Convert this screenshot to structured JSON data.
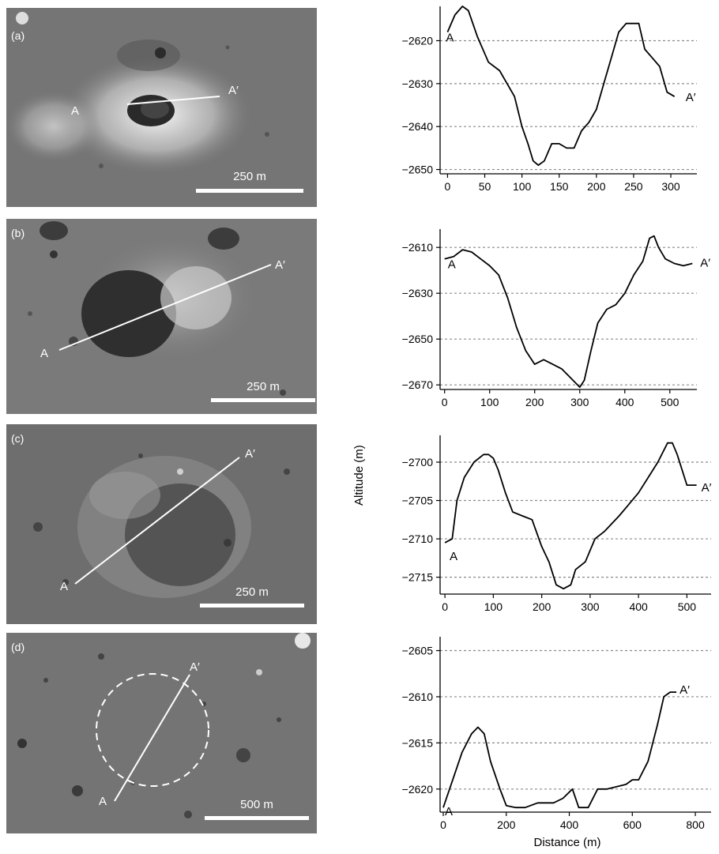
{
  "panels": [
    {
      "id": "a",
      "tag": "(a)",
      "scale_label": "250 m",
      "start_label": "A",
      "end_label": "A′"
    },
    {
      "id": "b",
      "tag": "(b)",
      "scale_label": "250 m",
      "start_label": "A",
      "end_label": "A′"
    },
    {
      "id": "c",
      "tag": "(c)",
      "scale_label": "250 m",
      "start_label": "A",
      "end_label": "A′"
    },
    {
      "id": "d",
      "tag": "(d)",
      "scale_label": "500 m",
      "start_label": "A",
      "end_label": "A′"
    }
  ],
  "ylabel": "Altitude (m)",
  "xlabel": "Distance (m)",
  "chart_data": [
    {
      "type": "line",
      "xlim": [
        -10,
        335
      ],
      "ylim": [
        -2651,
        -2612
      ],
      "xticks": [
        0,
        50,
        100,
        150,
        200,
        250,
        300
      ],
      "yticks": [
        -2620,
        -2630,
        -2640,
        -2650
      ],
      "gridlines": [
        -2620,
        -2630,
        -2640,
        -2650
      ],
      "grid": "horizontal dashed",
      "start_label": "A",
      "end_label": "A′",
      "x": [
        0,
        10,
        20,
        28,
        40,
        55,
        70,
        90,
        100,
        108,
        115,
        122,
        130,
        140,
        150,
        160,
        170,
        180,
        190,
        200,
        210,
        220,
        230,
        240,
        250,
        257,
        265,
        275,
        285,
        295,
        305
      ],
      "y": [
        -2618,
        -2614,
        -2612,
        -2613,
        -2619,
        -2625,
        -2627,
        -2633,
        -2640,
        -2644,
        -2648,
        -2649,
        -2648,
        -2644,
        -2644,
        -2645,
        -2645,
        -2641,
        -2639,
        -2636,
        -2630,
        -2624,
        -2618,
        -2616,
        -2616,
        -2616,
        -2622,
        -2624,
        -2626,
        -2632,
        -2633
      ]
    },
    {
      "type": "line",
      "xlim": [
        -10,
        560
      ],
      "ylim": [
        -2672,
        -2602
      ],
      "xticks": [
        0,
        100,
        200,
        300,
        400,
        500
      ],
      "yticks": [
        -2610,
        -2630,
        -2650,
        -2670
      ],
      "gridlines": [
        -2610,
        -2630,
        -2650,
        -2670
      ],
      "grid": "horizontal dashed",
      "start_label": "A",
      "end_label": "A′",
      "x": [
        0,
        20,
        40,
        60,
        80,
        100,
        120,
        140,
        160,
        180,
        200,
        220,
        240,
        260,
        280,
        300,
        310,
        325,
        340,
        360,
        380,
        400,
        420,
        440,
        455,
        465,
        475,
        490,
        510,
        530,
        550
      ],
      "y": [
        -2615,
        -2614,
        -2611,
        -2612,
        -2615,
        -2618,
        -2622,
        -2632,
        -2645,
        -2655,
        -2661,
        -2659,
        -2661,
        -2663,
        -2667,
        -2671,
        -2668,
        -2655,
        -2643,
        -2637,
        -2635,
        -2630,
        -2622,
        -2616,
        -2606,
        -2605,
        -2610,
        -2615,
        -2617,
        -2618,
        -2617
      ]
    },
    {
      "type": "line",
      "xlim": [
        -10,
        550
      ],
      "ylim": [
        -2717.2,
        -2696.5
      ],
      "xticks": [
        0,
        100,
        200,
        300,
        400,
        500
      ],
      "yticks": [
        -2700,
        -2705,
        -2710,
        -2715
      ],
      "gridlines": [
        -2700,
        -2705,
        -2710,
        -2715
      ],
      "grid": "horizontal dashed",
      "start_label": "A",
      "end_label": "A′",
      "x": [
        0,
        15,
        25,
        40,
        60,
        80,
        90,
        100,
        110,
        125,
        140,
        160,
        180,
        200,
        215,
        230,
        245,
        260,
        270,
        290,
        310,
        330,
        360,
        380,
        400,
        420,
        440,
        460,
        470,
        480,
        500,
        520
      ],
      "y": [
        -2710.5,
        -2710,
        -2705,
        -2702,
        -2700,
        -2699,
        -2699,
        -2699.5,
        -2701,
        -2704,
        -2706.5,
        -2707,
        -2707.5,
        -2711,
        -2713,
        -2716,
        -2716.5,
        -2716,
        -2714,
        -2713,
        -2710,
        -2709,
        -2707,
        -2705.5,
        -2704,
        -2702,
        -2700,
        -2697.5,
        -2697.5,
        -2699,
        -2703,
        -2703
      ]
    },
    {
      "type": "line",
      "xlim": [
        -10,
        850
      ],
      "ylim": [
        -2622.5,
        -2603.5
      ],
      "xticks": [
        0,
        200,
        400,
        600,
        800
      ],
      "yticks": [
        -2605,
        -2610,
        -2615,
        -2620
      ],
      "gridlines": [
        -2605,
        -2610,
        -2615,
        -2620
      ],
      "grid": "horizontal dashed",
      "start_label": "A",
      "end_label": "A′",
      "x": [
        0,
        30,
        60,
        90,
        110,
        130,
        150,
        180,
        200,
        230,
        260,
        300,
        350,
        380,
        410,
        430,
        460,
        490,
        520,
        580,
        600,
        620,
        650,
        680,
        700,
        720,
        740
      ],
      "y": [
        -2622,
        -2619,
        -2616,
        -2614,
        -2613.3,
        -2614,
        -2617,
        -2620,
        -2621.8,
        -2622,
        -2622,
        -2621.5,
        -2621.5,
        -2621,
        -2620,
        -2622,
        -2622,
        -2620,
        -2620,
        -2619.5,
        -2619,
        -2619,
        -2617,
        -2613,
        -2610,
        -2609.5,
        -2609.5
      ]
    }
  ]
}
